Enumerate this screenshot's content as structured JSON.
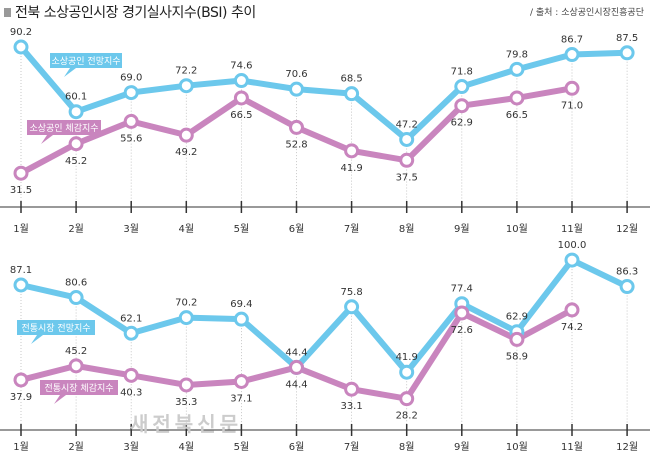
{
  "title": "전북 소상공인시장 경기실사지수(BSI) 추이",
  "source": "/ 출처 : 소상공인시장진흥공단",
  "watermark": "새전북신문",
  "colors": {
    "outlook": "#6cc8ec",
    "perceived": "#c985be",
    "axis": "#333333"
  },
  "chart_data": [
    {
      "type": "line",
      "categories": [
        "1월",
        "2월",
        "3월",
        "4월",
        "5월",
        "6월",
        "7월",
        "8월",
        "9월",
        "10월",
        "11월",
        "12월"
      ],
      "series": [
        {
          "name": "소상공인 전망지수",
          "values": [
            90.2,
            60.1,
            69.0,
            72.2,
            74.6,
            70.6,
            68.5,
            47.2,
            71.8,
            79.8,
            86.7,
            87.5
          ]
        },
        {
          "name": "소상공인 체감지수",
          "values": [
            31.5,
            45.2,
            55.6,
            49.2,
            66.5,
            52.8,
            41.9,
            37.5,
            62.9,
            66.5,
            71.0,
            null
          ]
        }
      ]
    },
    {
      "type": "line",
      "categories": [
        "1월",
        "2월",
        "3월",
        "4월",
        "5월",
        "6월",
        "7월",
        "8월",
        "9월",
        "10월",
        "11월",
        "12월"
      ],
      "series": [
        {
          "name": "전통시장 전망지수",
          "values": [
            87.1,
            80.6,
            62.1,
            70.2,
            69.4,
            44.4,
            75.8,
            41.9,
            77.4,
            62.9,
            100.0,
            86.3
          ]
        },
        {
          "name": "전통시장 체감지수",
          "values": [
            37.9,
            45.2,
            40.3,
            35.3,
            37.1,
            44.4,
            33.1,
            28.2,
            72.6,
            58.9,
            74.2,
            null
          ]
        }
      ]
    }
  ]
}
